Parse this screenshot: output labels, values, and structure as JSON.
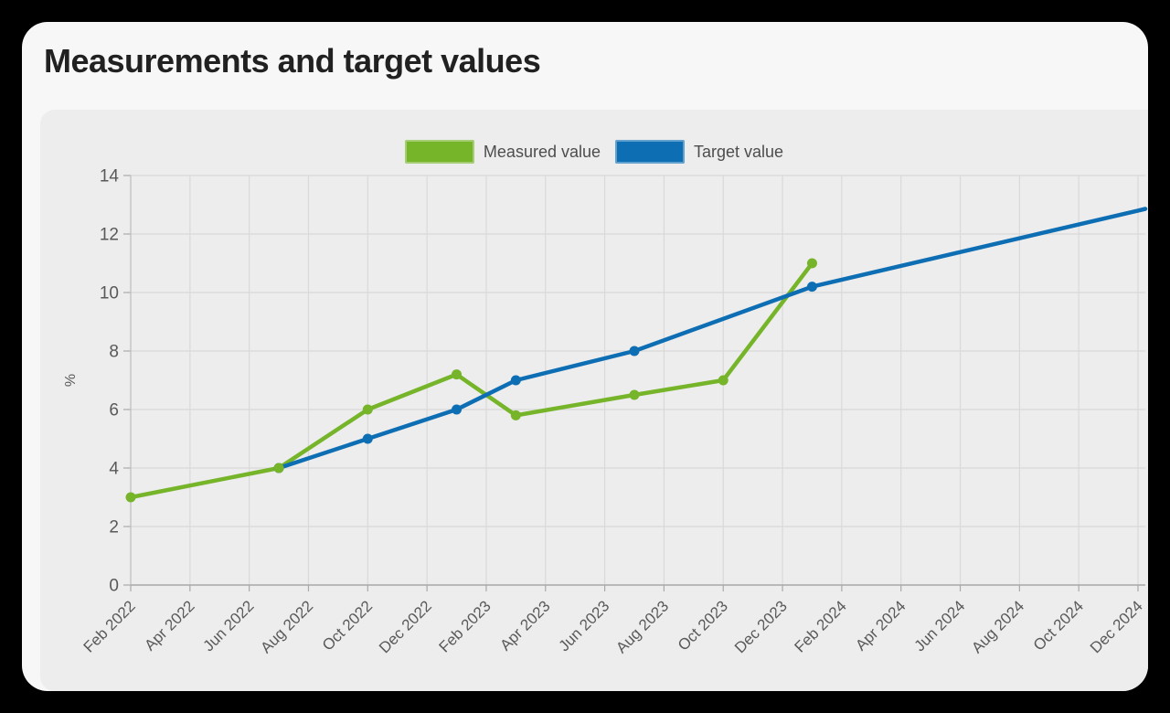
{
  "card": {
    "title": "Measurements and target values"
  },
  "chart_data": {
    "type": "line",
    "title": "Measurements and target values",
    "xlabel": "",
    "ylabel": "%",
    "ylim": [
      0,
      14
    ],
    "y_ticks": [
      0,
      2,
      4,
      6,
      8,
      10,
      12,
      14
    ],
    "x_ticks": [
      "Feb 2022",
      "Apr 2022",
      "Jun 2022",
      "Aug 2022",
      "Oct 2022",
      "Dec 2022",
      "Feb 2023",
      "Apr 2023",
      "Jun 2023",
      "Aug 2023",
      "Oct 2023",
      "Dec 2023",
      "Feb 2024",
      "Apr 2024",
      "Jun 2024",
      "Aug 2024",
      "Oct 2024",
      "Dec 2024"
    ],
    "grid": true,
    "legend_position": "top",
    "series": [
      {
        "name": "Measured value",
        "color": "#76b42a",
        "points": [
          [
            "Feb 2022",
            3
          ],
          [
            "Jul 2022",
            4
          ],
          [
            "Oct 2022",
            6
          ],
          [
            "Jan 2023",
            7.2
          ],
          [
            "Mar 2023",
            5.8
          ],
          [
            "Jul 2023",
            6.5
          ],
          [
            "Oct 2023",
            7
          ],
          [
            "Jan 2024",
            11
          ]
        ]
      },
      {
        "name": "Target value",
        "color": "#0e6eb4",
        "extend_to_edge": true,
        "points": [
          [
            "Jul 2022",
            4
          ],
          [
            "Oct 2022",
            5
          ],
          [
            "Jan 2023",
            6
          ],
          [
            "Mar 2023",
            7
          ],
          [
            "Jul 2023",
            8
          ],
          [
            "Jan 2024",
            10.2
          ],
          [
            "Dec 2024",
            12.8,
            false
          ]
        ]
      }
    ],
    "colors": {
      "panel_bg": "#ededed",
      "card_bg": "#f7f7f7",
      "page_bg": "#000000",
      "grid": "#d9d9d9",
      "axis": "#a9a9a9",
      "tick_text": "#595959",
      "title_text": "#212121",
      "legend_text": "#4d4d4d"
    }
  }
}
